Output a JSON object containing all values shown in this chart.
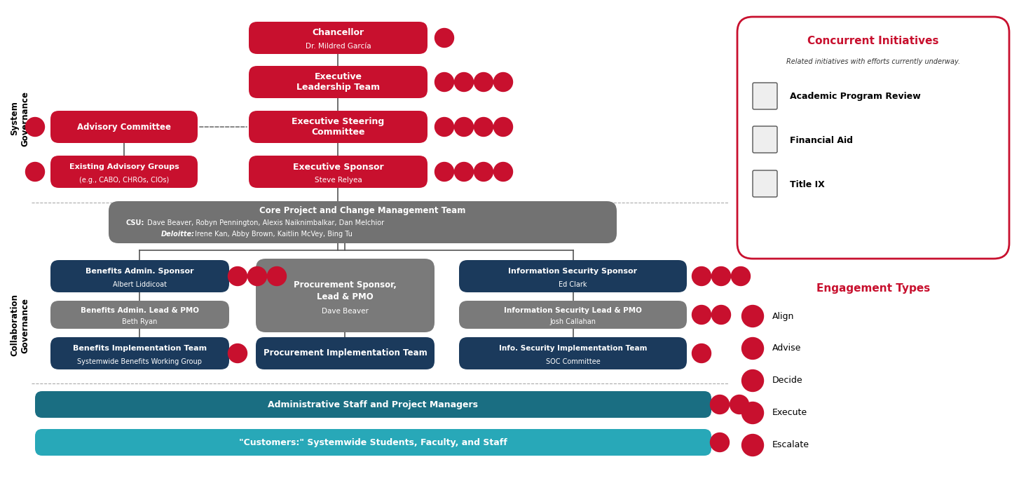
{
  "bg_color": "#ffffff",
  "red": "#C8102E",
  "dark_navy": "#1B3A5C",
  "gray_med": "#7A7A7A",
  "teal_dark": "#1a6e82",
  "teal_light": "#28a8b8",
  "white": "#ffffff",
  "black": "#000000",
  "line_color": "#555555",
  "dash_color": "#aaaaaa",
  "chancellor": {
    "title": "Chancellor",
    "subtitle": "Dr. Mildred García"
  },
  "exec_leadership": {
    "title": "Executive\nLeadership Team"
  },
  "exec_steering": {
    "title": "Executive Steering\nCommittee"
  },
  "exec_sponsor": {
    "title": "Executive Sponsor",
    "subtitle": "Steve Relyea"
  },
  "advisory_committee": {
    "title": "Advisory Committee"
  },
  "existing_advisory_line1": "Existing Advisory Groups",
  "existing_advisory_line2": "(e.g., CABO, CHROs, CIOs)",
  "core_title": "Core Project and Change Management Team",
  "core_csu_label": "CSU:",
  "core_csu_text": " Dave Beaver, Robyn Pennington, Alexis Naiknimbalkar, Dan Melchior",
  "core_deloitte_label": "Deloitte:",
  "core_deloitte_text": " Irene Kan, Abby Brown, Kaitlin McVey, Bing Tu",
  "benefits_sponsor_t": "Benefits Admin. Sponsor",
  "benefits_sponsor_s": "Albert Liddicoat",
  "benefits_lead_t": "Benefits Admin. Lead & PMO",
  "benefits_lead_s": "Beth Ryan",
  "benefits_impl_t": "Benefits Implementation Team",
  "benefits_impl_s": "Systemwide Benefits Working Group",
  "procurement_t1": "Procurement Sponsor,",
  "procurement_t2": "Lead & PMO",
  "procurement_s": "Dave Beaver",
  "procurement_impl_t": "Procurement Implementation Team",
  "info_sec_sponsor_t": "Information Security Sponsor",
  "info_sec_sponsor_s": "Ed Clark",
  "info_sec_lead_t": "Information Security Lead & PMO",
  "info_sec_lead_s": "Josh Callahan",
  "info_sec_impl_t": "Info. Security Implementation Team",
  "info_sec_impl_s": "SOC Committee",
  "admin_staff_t": "Administrative Staff and Project Managers",
  "customers_t": "\"Customers:\" Systemwide Students, Faculty, and Staff",
  "concurrent_title": "Concurrent Initiatives",
  "concurrent_subtitle": "Related initiatives with efforts currently underway.",
  "concurrent_items": [
    "Academic Program Review",
    "Financial Aid",
    "Title IX"
  ],
  "engagement_title": "Engagement Types",
  "engagement_items": [
    "Align",
    "Advise",
    "Decide",
    "Execute",
    "Escalate"
  ]
}
